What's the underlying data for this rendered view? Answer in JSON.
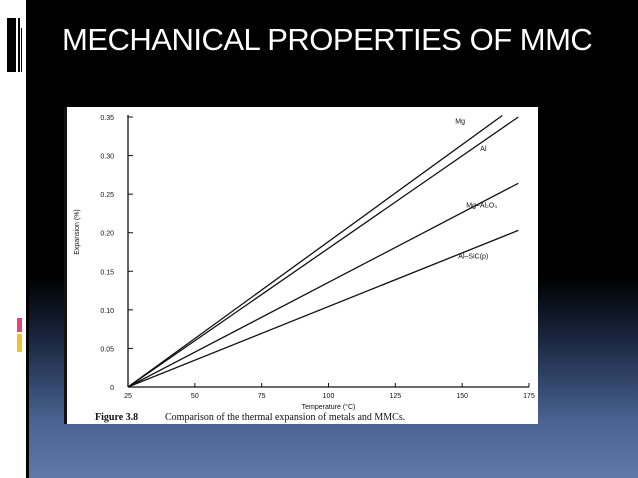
{
  "slide": {
    "title": "MECHANICAL PROPERTIES OF MMC"
  },
  "figure": {
    "caption_label": "Figure 3.8",
    "caption_text": "Comparison of the thermal expansion of metals and MMCs."
  },
  "colors": {
    "accent_pink": "#e0457b",
    "accent_yellow": "#f2c12e",
    "line_color": "#111111"
  },
  "chart_data": {
    "type": "line",
    "xlabel": "Temperature   (°C)",
    "ylabel": "Expansion  (%)",
    "xlim": [
      25,
      175
    ],
    "ylim": [
      0,
      0.35
    ],
    "x_ticks": [
      25,
      50,
      75,
      100,
      125,
      150,
      175
    ],
    "x_tick_labels": [
      "25",
      "50",
      "75",
      "100",
      "125",
      "150",
      "175"
    ],
    "y_ticks": [
      0,
      0.05,
      0.1,
      0.15,
      0.2,
      0.25,
      0.3,
      0.35
    ],
    "y_tick_labels": [
      "0",
      "0.05",
      "0.10",
      "0.15",
      "0.20",
      "0.25",
      "0.30",
      "0.35"
    ],
    "grid": false,
    "series": [
      {
        "name": "Mg",
        "x": [
          25,
          165
        ],
        "y": [
          0,
          0.352
        ]
      },
      {
        "name": "Al",
        "x": [
          25,
          171
        ],
        "y": [
          0,
          0.35
        ]
      },
      {
        "name": "Mg–Al₂O₃",
        "x": [
          25,
          171
        ],
        "y": [
          0,
          0.264
        ]
      },
      {
        "name": "Al–SiC(p)",
        "x": [
          25,
          171
        ],
        "y": [
          0,
          0.203
        ]
      }
    ]
  }
}
